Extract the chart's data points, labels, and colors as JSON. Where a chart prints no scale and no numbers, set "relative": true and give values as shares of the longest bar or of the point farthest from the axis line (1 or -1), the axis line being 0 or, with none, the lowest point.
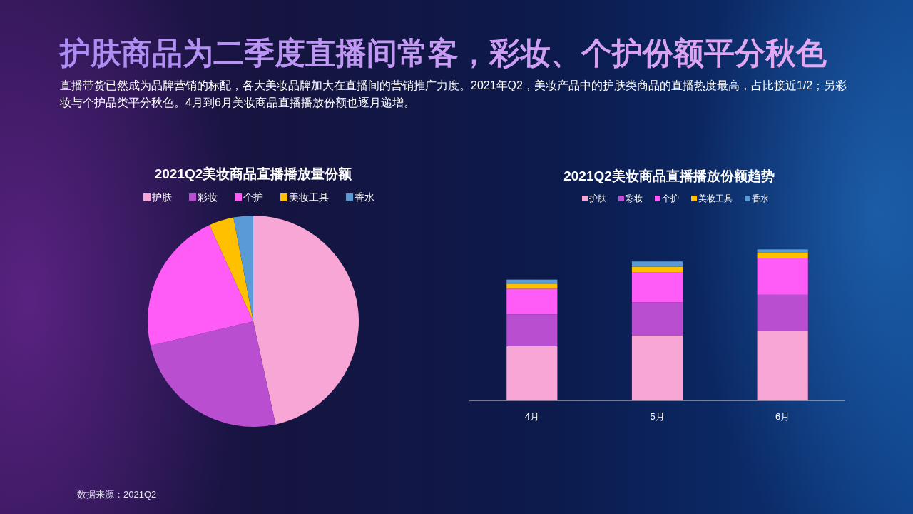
{
  "chart_data": [
    {
      "type": "other",
      "title": "护肤商品为二季度直播间常客，彩妆、个护份额平分秋色",
      "subtitle": "直播带货已然成为品牌营销的标配，各大美妆品牌加大在直播间的营销推广力度。2021年Q2，美妆产品中的护肤类商品的直播热度最高，占比接近1/2；另彩妆与个护品类平分秋色。4月到6月美妆商品直播播放份额也逐月递增。",
      "annotations": [
        "数据来源：2021Q2"
      ]
    },
    {
      "type": "pie",
      "title": "2021Q2美妆商品直播播放量份额",
      "categories": [
        "护肤",
        "彩妆",
        "个护",
        "美妆工具",
        "香水"
      ],
      "values": [
        46.6,
        24.7,
        21.9,
        3.8,
        3.0
      ],
      "colors": [
        "#f8a6d6",
        "#b94fd0",
        "#ff5cf7",
        "#ffc000",
        "#5b9bd5"
      ],
      "legend": "top"
    },
    {
      "type": "bar",
      "title": "2021Q2美妆商品直播播放份额趋势",
      "categories": [
        "4月",
        "5月",
        "6月"
      ],
      "stacked": true,
      "relative": true,
      "legend": "top",
      "series": [
        {
          "name": "护肤",
          "color": "#f8a6d6",
          "values": [
            0.36,
            0.43,
            0.46
          ]
        },
        {
          "name": "彩妆",
          "color": "#b94fd0",
          "values": [
            0.21,
            0.22,
            0.24
          ]
        },
        {
          "name": "个护",
          "color": "#ff5cf7",
          "values": [
            0.17,
            0.2,
            0.24
          ]
        },
        {
          "name": "美妆工具",
          "color": "#ffc000",
          "values": [
            0.03,
            0.035,
            0.04
          ]
        },
        {
          "name": "香水",
          "color": "#5b9bd5",
          "values": [
            0.03,
            0.035,
            0.02
          ]
        }
      ]
    }
  ]
}
